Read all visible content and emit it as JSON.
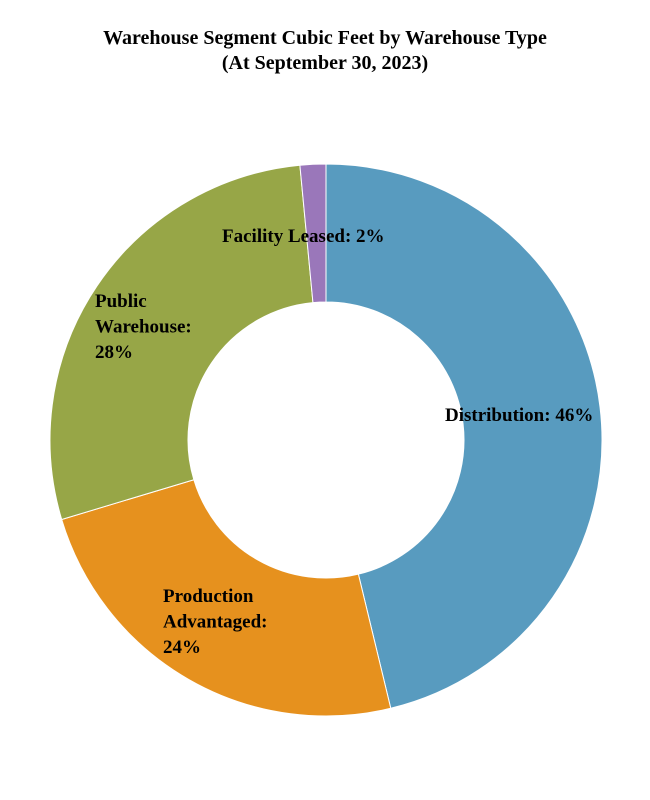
{
  "chart_data": {
    "type": "pie",
    "title": "Warehouse Segment Cubic Feet by Warehouse Type",
    "subtitle": "(At September 30, 2023)",
    "donut": true,
    "slices": [
      {
        "label": "Distribution: 46%",
        "value": 46,
        "color": "#589BBF"
      },
      {
        "label": "Production Advantaged: 24%",
        "value": 24,
        "color": "#E6911E"
      },
      {
        "label": "Public Warehouse: 28%",
        "value": 28,
        "color": "#97A647"
      },
      {
        "label": "Facility Leased: 2%",
        "value": 1.5,
        "color": "#9A77BA"
      }
    ],
    "legend": "none"
  }
}
